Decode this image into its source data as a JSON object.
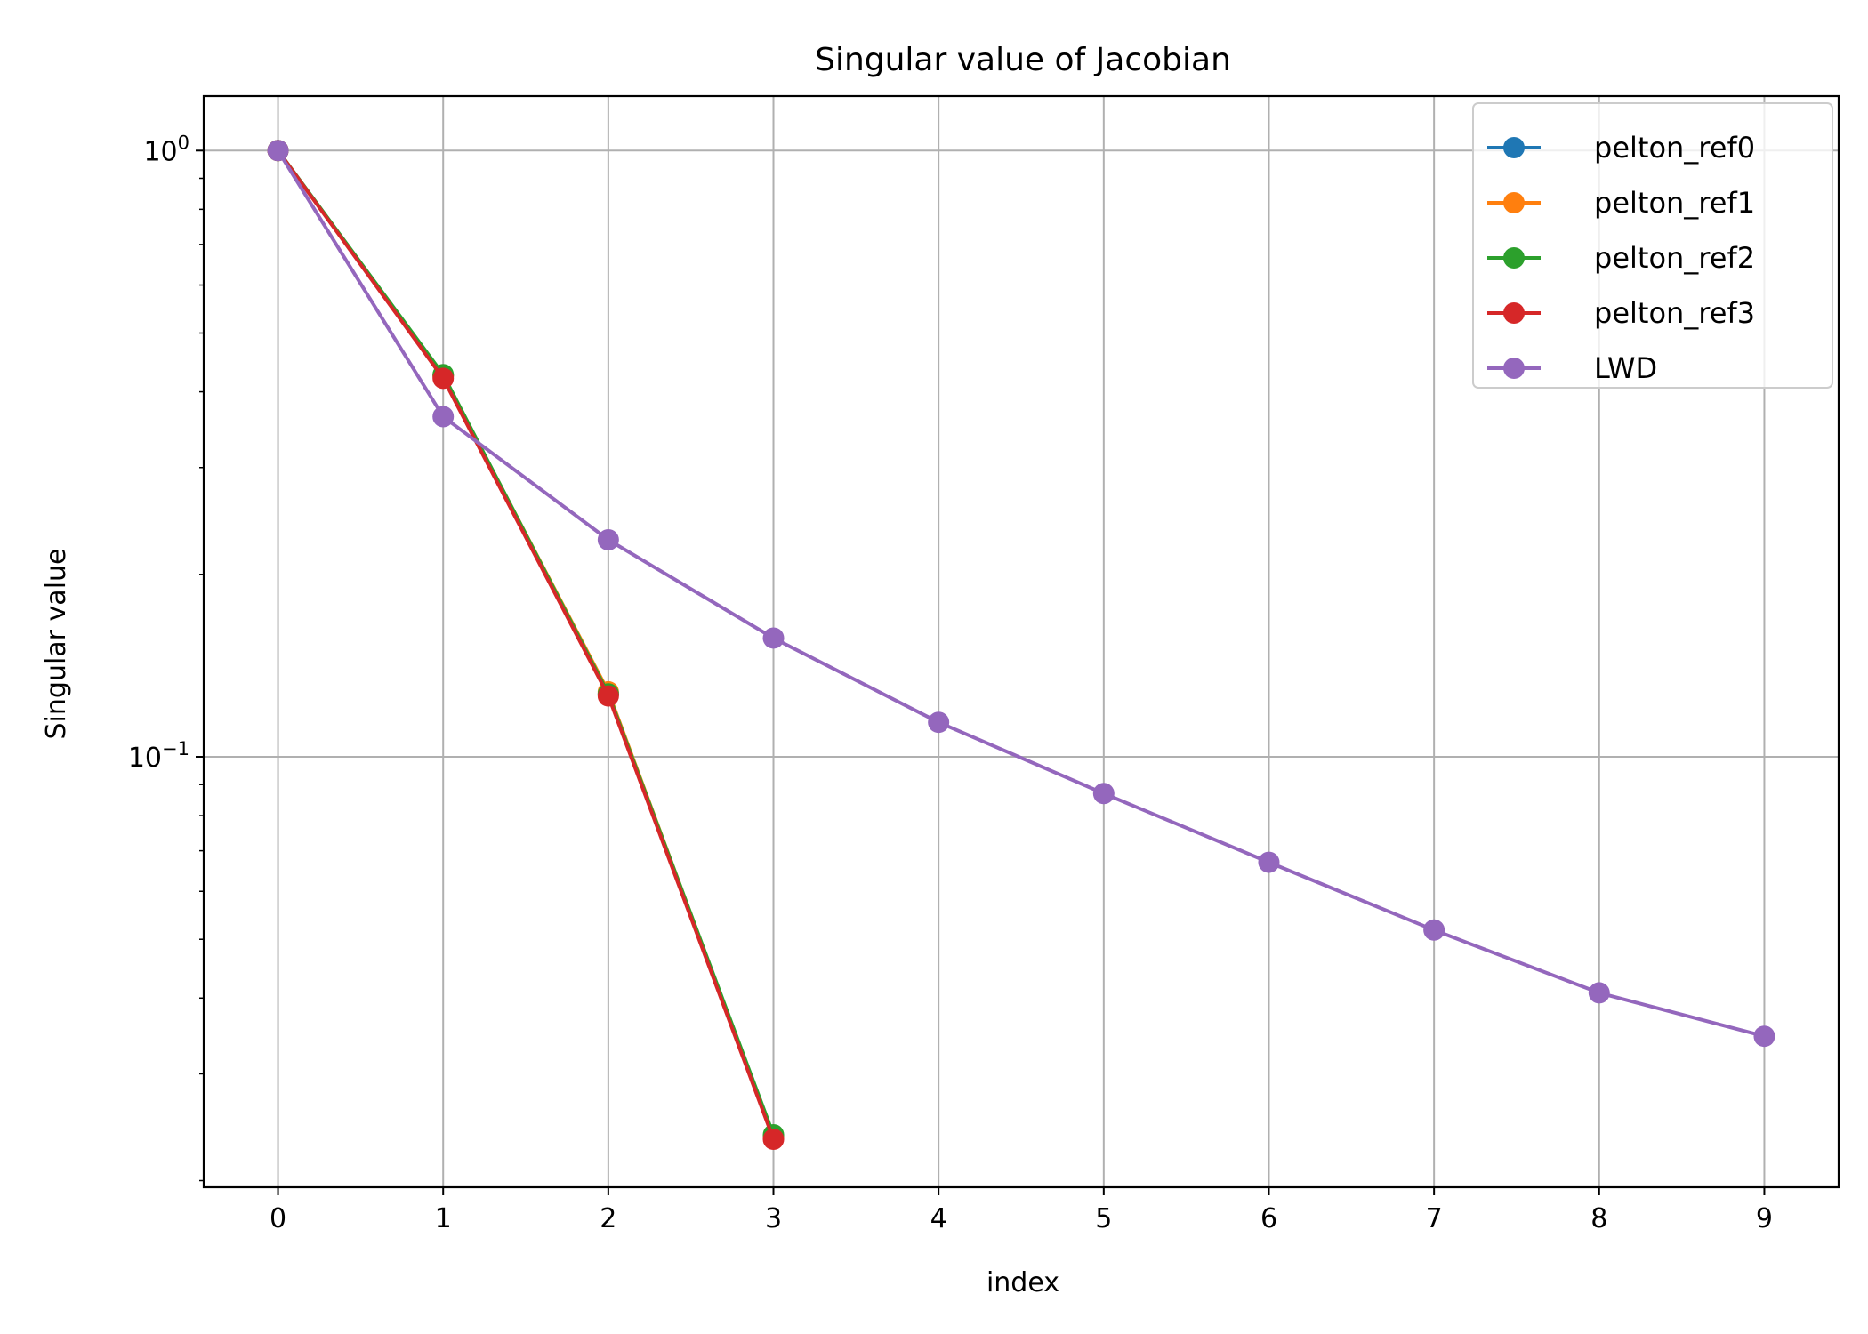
{
  "chart_data": {
    "type": "line",
    "title": "Singular value of Jacobian",
    "xlabel": "index",
    "ylabel": "Singular value",
    "yscale": "log",
    "xlim": [
      -0.45,
      9.45
    ],
    "ylim": [
      0.0195,
      1.23
    ],
    "x_ticks": [
      0,
      1,
      2,
      3,
      4,
      5,
      6,
      7,
      8,
      9
    ],
    "y_ticks": [
      {
        "value": 1,
        "base": "10",
        "exp": "0"
      },
      {
        "value": 0.1,
        "base": "10",
        "exp": "−1"
      }
    ],
    "grid": true,
    "legend_position": "top-right",
    "series": [
      {
        "name": "pelton_ref0",
        "color": "#1f77b4",
        "x": [
          0,
          1,
          2,
          3
        ],
        "values": [
          1.0,
          0.425,
          0.127,
          0.0236
        ]
      },
      {
        "name": "pelton_ref1",
        "color": "#ff7f0e",
        "x": [
          0,
          1,
          2,
          3
        ],
        "values": [
          1.0,
          0.425,
          0.128,
          0.0236
        ]
      },
      {
        "name": "pelton_ref2",
        "color": "#2ca02c",
        "x": [
          0,
          1,
          2,
          3
        ],
        "values": [
          1.0,
          0.427,
          0.127,
          0.0238
        ]
      },
      {
        "name": "pelton_ref3",
        "color": "#d62728",
        "x": [
          0,
          1,
          2,
          3
        ],
        "values": [
          1.0,
          0.421,
          0.126,
          0.0234
        ]
      },
      {
        "name": "LWD",
        "color": "#9467bd",
        "x": [
          0,
          1,
          2,
          3,
          4,
          5,
          6,
          7,
          8,
          9
        ],
        "values": [
          1.0,
          0.364,
          0.228,
          0.157,
          0.114,
          0.087,
          0.067,
          0.0518,
          0.0408,
          0.0346
        ]
      }
    ]
  }
}
